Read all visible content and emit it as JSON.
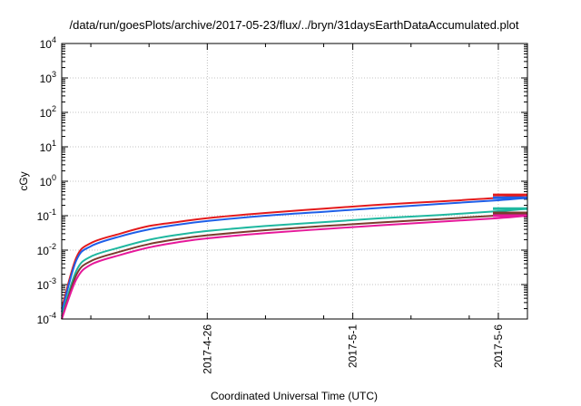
{
  "chart_data": {
    "type": "line",
    "title": "/data/run/goesPlots/archive/2017-05-23/flux/../bryn/31daysEarthDataAccumulated.plot",
    "xlabel": "Coordinated Universal Time (UTC)",
    "ylabel": "cGy",
    "y_scale": "log",
    "ylim": [
      0.0001,
      10000
    ],
    "y_ticks": [
      {
        "value": 0.0001,
        "base": "10",
        "exp": "-4"
      },
      {
        "value": 0.001,
        "base": "10",
        "exp": "-3"
      },
      {
        "value": 0.01,
        "base": "10",
        "exp": "-2"
      },
      {
        "value": 0.1,
        "base": "10",
        "exp": "-1"
      },
      {
        "value": 1,
        "base": "10",
        "exp": "0"
      },
      {
        "value": 10,
        "base": "10",
        "exp": "1"
      },
      {
        "value": 100,
        "base": "10",
        "exp": "2"
      },
      {
        "value": 1000,
        "base": "10",
        "exp": "3"
      },
      {
        "value": 10000,
        "base": "10",
        "exp": "4"
      }
    ],
    "xlim": [
      "2017-04-21",
      "2017-05-07"
    ],
    "x_ticks": [
      "2017-4-26",
      "2017-5-1",
      "2017-5-6"
    ],
    "x_minor_ticks": [
      "2017-4-22",
      "2017-4-24",
      "2017-4-28",
      "2017-4-30",
      "2017-5-3",
      "2017-5-5"
    ],
    "grid": true,
    "legend": "none",
    "series": [
      {
        "color": "#e31a1c",
        "x": [
          "2017-04-21",
          "2017-04-21T12:00",
          "2017-04-22",
          "2017-04-23",
          "2017-04-24",
          "2017-04-25",
          "2017-04-26",
          "2017-04-28",
          "2017-04-30",
          "2017-05-02",
          "2017-05-04",
          "2017-05-06",
          "2017-05-07"
        ],
        "values": [
          0.0002,
          0.006,
          0.016,
          0.03,
          0.05,
          0.066,
          0.085,
          0.12,
          0.16,
          0.21,
          0.26,
          0.33,
          0.4
        ]
      },
      {
        "color": "#1f5fe8",
        "x": [
          "2017-04-21",
          "2017-04-21T12:00",
          "2017-04-22",
          "2017-04-23",
          "2017-04-24",
          "2017-04-25",
          "2017-04-26",
          "2017-04-28",
          "2017-04-30",
          "2017-05-02",
          "2017-05-04",
          "2017-05-06",
          "2017-05-07"
        ],
        "values": [
          0.00016,
          0.005,
          0.013,
          0.025,
          0.04,
          0.055,
          0.07,
          0.1,
          0.13,
          0.17,
          0.22,
          0.28,
          0.33
        ]
      },
      {
        "color": "#1fb8a0",
        "x": [
          "2017-04-21",
          "2017-04-21T12:00",
          "2017-04-22",
          "2017-04-23",
          "2017-04-24",
          "2017-04-25",
          "2017-04-26",
          "2017-04-28",
          "2017-04-30",
          "2017-05-02",
          "2017-05-04",
          "2017-05-06",
          "2017-05-07"
        ],
        "values": [
          0.00012,
          0.0025,
          0.0065,
          0.012,
          0.02,
          0.028,
          0.036,
          0.05,
          0.065,
          0.085,
          0.105,
          0.135,
          0.16
        ]
      },
      {
        "color": "#7a3b2e",
        "x": [
          "2017-04-21",
          "2017-04-21T12:00",
          "2017-04-22",
          "2017-04-23",
          "2017-04-24",
          "2017-04-25",
          "2017-04-26",
          "2017-04-28",
          "2017-04-30",
          "2017-05-02",
          "2017-05-04",
          "2017-05-06",
          "2017-05-07"
        ],
        "values": [
          0.0001,
          0.0019,
          0.0048,
          0.009,
          0.015,
          0.021,
          0.027,
          0.038,
          0.05,
          0.064,
          0.08,
          0.102,
          0.12
        ]
      },
      {
        "color": "#e6189a",
        "x": [
          "2017-04-21",
          "2017-04-21T12:00",
          "2017-04-22",
          "2017-04-23",
          "2017-04-24",
          "2017-04-25",
          "2017-04-26",
          "2017-04-28",
          "2017-04-30",
          "2017-05-02",
          "2017-05-04",
          "2017-05-06",
          "2017-05-07"
        ],
        "values": [
          0.0001,
          0.0014,
          0.0038,
          0.0072,
          0.012,
          0.017,
          0.022,
          0.031,
          0.041,
          0.053,
          0.067,
          0.085,
          0.1
        ]
      }
    ]
  }
}
